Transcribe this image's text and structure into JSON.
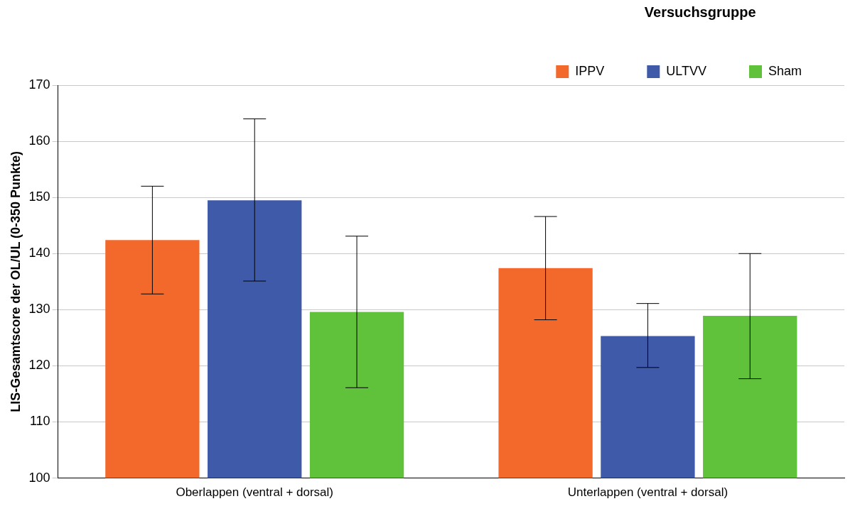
{
  "chart_data": {
    "type": "bar",
    "ylabel": "LIS-Gesamtscore der OL/UL (0-350 Punkte)",
    "legend_title": "Versuchsgruppe",
    "categories": [
      "Oberlappen (ventral + dorsal)",
      "Unterlappen (ventral + dorsal)"
    ],
    "series": [
      {
        "name": "IPPV",
        "color": "#f2692b",
        "values": [
          142.4,
          137.4
        ],
        "errors": [
          [
            132.8,
            152.0
          ],
          [
            128.2,
            146.6
          ]
        ]
      },
      {
        "name": "ULTVV",
        "color": "#3f5aa8",
        "values": [
          149.5,
          125.3
        ],
        "errors": [
          [
            135.1,
            164.0
          ],
          [
            119.7,
            131.1
          ]
        ]
      },
      {
        "name": "Sham",
        "color": "#5fc23a",
        "values": [
          129.6,
          128.9
        ],
        "errors": [
          [
            116.1,
            143.1
          ],
          [
            117.7,
            140.0
          ]
        ]
      }
    ],
    "ylim": [
      100,
      170
    ],
    "yticks": [
      100,
      110,
      120,
      130,
      140,
      150,
      160,
      170
    ],
    "grid": "y",
    "legend": "top right"
  }
}
